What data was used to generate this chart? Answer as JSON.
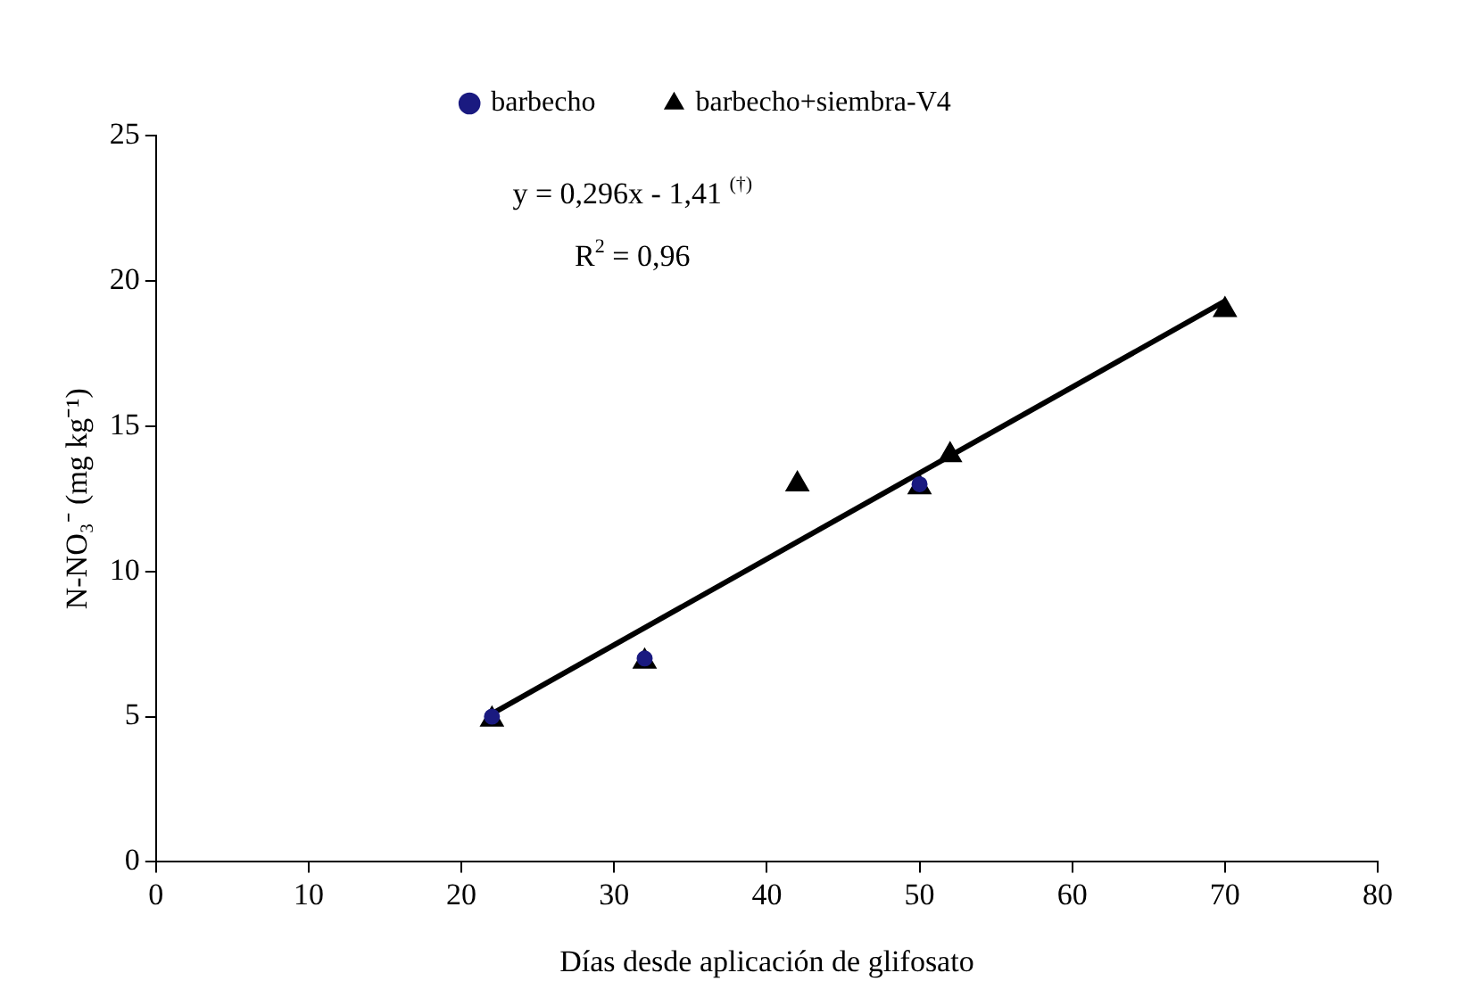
{
  "chart_data": {
    "type": "scatter",
    "xlabel": "Días desde aplicación de glifosato",
    "ylabel": "N-NO₃⁻ (mg kg⁻¹)",
    "xlim": [
      0,
      80
    ],
    "xticks": [
      0,
      10,
      20,
      30,
      40,
      50,
      60,
      70,
      80
    ],
    "ylim": [
      0,
      25
    ],
    "yticks": [
      0,
      5,
      10,
      15,
      20,
      25
    ],
    "grid": false,
    "legend": "top",
    "series": [
      {
        "name": "barbecho",
        "color": "#1a1a80",
        "marker": "circle",
        "x": [
          22,
          32,
          50
        ],
        "values": [
          5,
          7,
          13
        ]
      },
      {
        "name": "barbecho+siembra-V4",
        "color": "#000000",
        "marker": "triangle",
        "x": [
          22,
          32,
          42,
          50,
          52,
          70
        ],
        "values": [
          4.9,
          6.9,
          13,
          12.9,
          14,
          19
        ]
      },
      {
        "type": "line",
        "color": "#000000",
        "marker": "none",
        "x": [
          22,
          70
        ],
        "values": [
          5.1,
          19.3
        ]
      }
    ],
    "annotations": [
      "y = 0,296x - 1,41 $^{(†)}$",
      "R$^{2}$ = 0,96"
    ]
  }
}
